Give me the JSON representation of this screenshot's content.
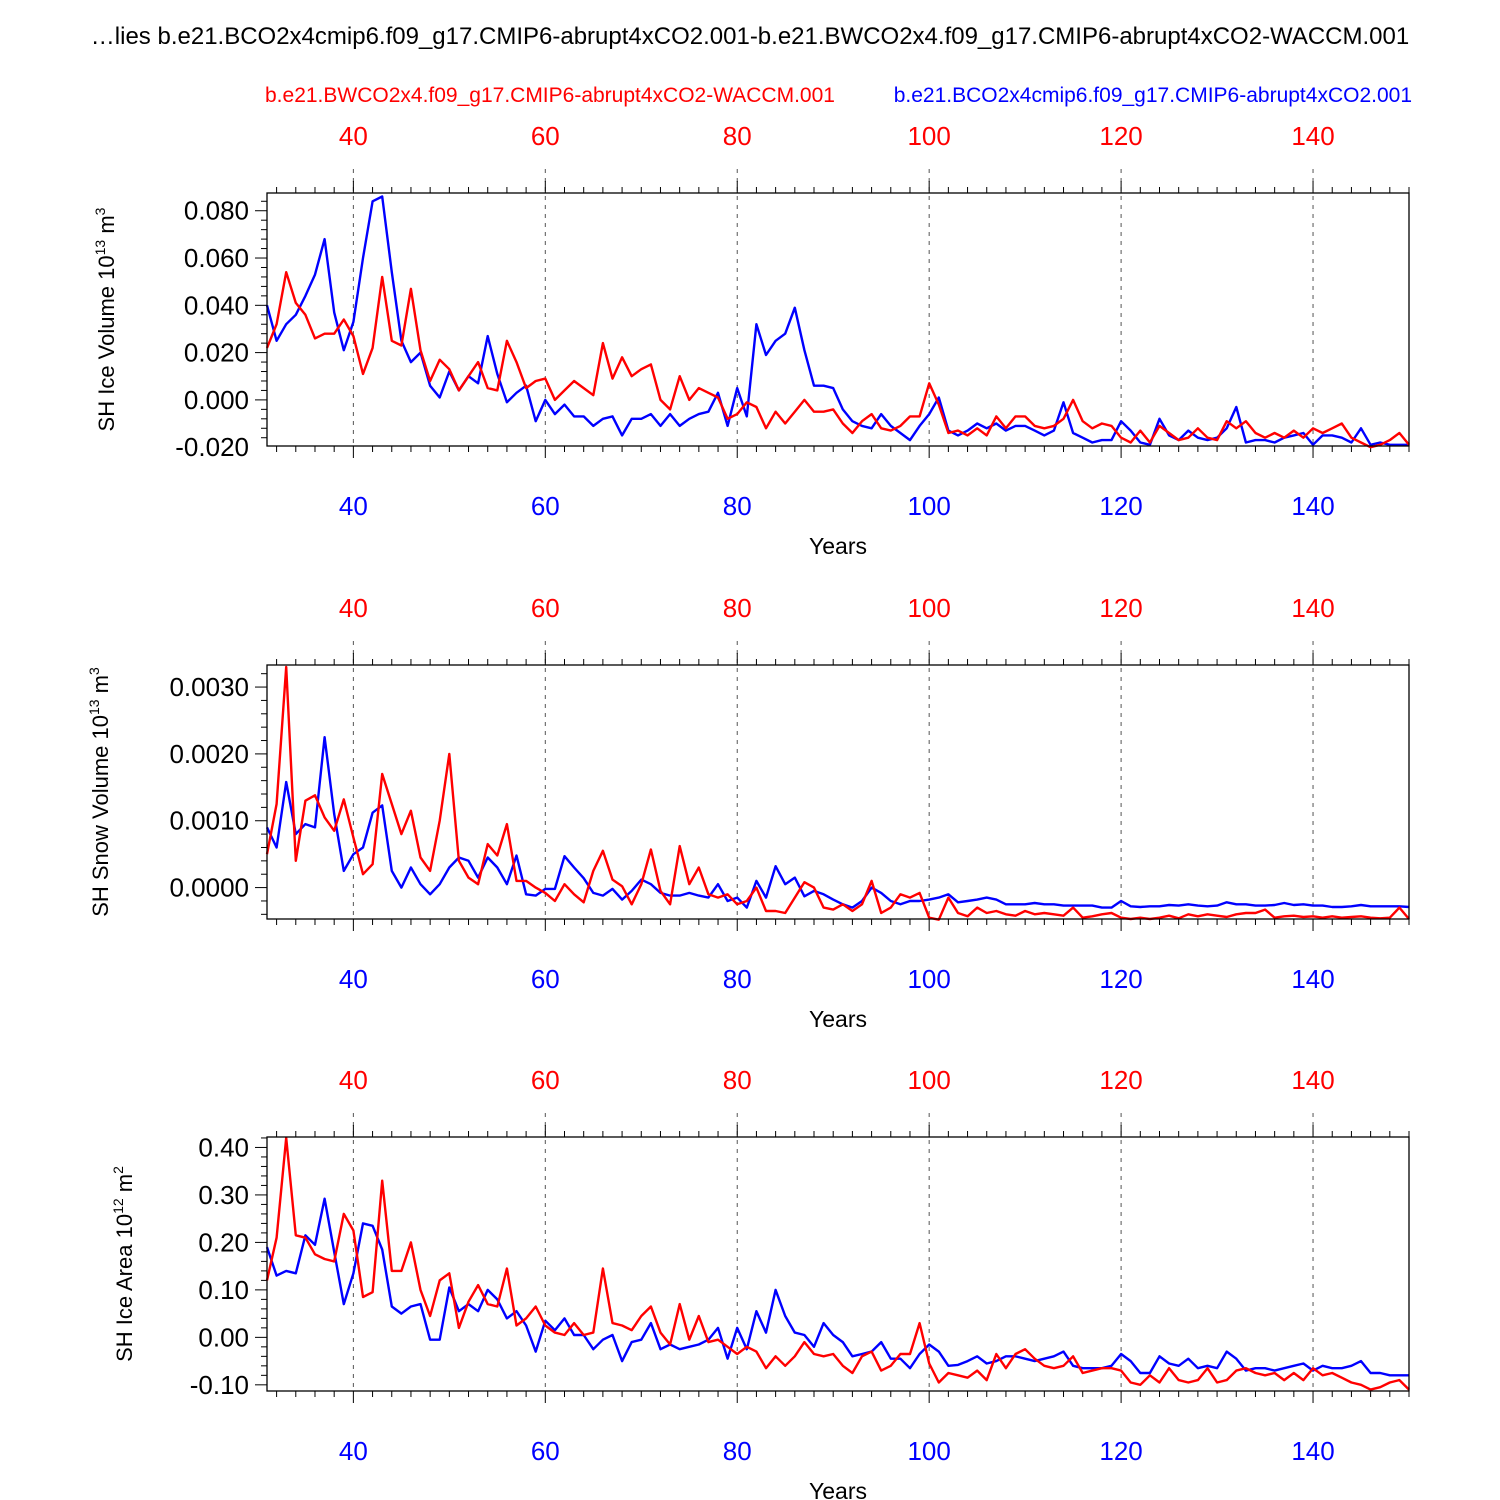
{
  "title": "…lies b.e21.BCO2x4cmip6.f09_g17.CMIP6-abrupt4xCO2.001-b.e21.BWCO2x4.f09_g17.CMIP6-abrupt4xCO2-WACCM.001",
  "legend": {
    "red_case": "b.e21.BWCO2x4.f09_g17.CMIP6-abrupt4xCO2-WACCM.001",
    "blue_case": "b.e21.BCO2x4cmip6.f09_g17.CMIP6-abrupt4xCO2.001"
  },
  "colors": {
    "red": "#ff0000",
    "blue": "#0000ff",
    "axis": "#000000",
    "grid": "#555555"
  },
  "chart_data": [
    {
      "type": "line",
      "ylabel_main": "SH Ice Volume 10",
      "ylabel_exp": "13",
      "ylabel_unit": " m",
      "ylabel_unit_exp": "3",
      "xlabel": "Years",
      "xlim": [
        31,
        150
      ],
      "ylim": [
        -0.0195,
        0.0875
      ],
      "yticks": [
        -0.02,
        0.0,
        0.02,
        0.04,
        0.06,
        0.08
      ],
      "ytick_labels": [
        "-0.020",
        "0.000",
        "0.020",
        "0.040",
        "0.060",
        "0.080"
      ],
      "xticks": [
        40,
        60,
        80,
        100,
        120,
        140
      ],
      "xtick_labels": [
        "40",
        "60",
        "80",
        "100",
        "120",
        "140"
      ],
      "x_start": 31,
      "series": [
        {
          "name": "blue",
          "color": "#0000ff",
          "values": [
            0.04,
            0.025,
            0.032,
            0.036,
            0.044,
            0.053,
            0.068,
            0.037,
            0.021,
            0.033,
            0.06,
            0.084,
            0.086,
            0.054,
            0.025,
            0.016,
            0.02,
            0.006,
            0.001,
            0.012,
            0.004,
            0.01,
            0.007,
            0.027,
            0.011,
            -0.001,
            0.003,
            0.006,
            -0.009,
            0.0,
            -0.006,
            -0.002,
            -0.007,
            -0.007,
            -0.011,
            -0.008,
            -0.007,
            -0.015,
            -0.008,
            -0.008,
            -0.006,
            -0.011,
            -0.006,
            -0.011,
            -0.008,
            -0.006,
            -0.005,
            0.003,
            -0.011,
            0.005,
            -0.007,
            0.032,
            0.019,
            0.025,
            0.028,
            0.039,
            0.021,
            0.006,
            0.006,
            0.005,
            -0.004,
            -0.009,
            -0.011,
            -0.012,
            -0.006,
            -0.011,
            -0.014,
            -0.017,
            -0.011,
            -0.006,
            0.001,
            -0.013,
            -0.015,
            -0.013,
            -0.01,
            -0.012,
            -0.01,
            -0.013,
            -0.011,
            -0.011,
            -0.013,
            -0.015,
            -0.013,
            -0.001,
            -0.014,
            -0.016,
            -0.018,
            -0.017,
            -0.017,
            -0.009,
            -0.013,
            -0.018,
            -0.019,
            -0.008,
            -0.015,
            -0.017,
            -0.013,
            -0.016,
            -0.017,
            -0.016,
            -0.012,
            -0.003,
            -0.018,
            -0.017,
            -0.017,
            -0.018,
            -0.016,
            -0.015,
            -0.014,
            -0.019,
            -0.015,
            -0.015,
            -0.016,
            -0.018,
            -0.012,
            -0.019,
            -0.018,
            -0.019,
            -0.019,
            -0.019
          ]
        },
        {
          "name": "red",
          "color": "#ff0000",
          "values": [
            0.022,
            0.032,
            0.054,
            0.041,
            0.036,
            0.026,
            0.028,
            0.028,
            0.034,
            0.027,
            0.011,
            0.022,
            0.052,
            0.025,
            0.023,
            0.047,
            0.021,
            0.008,
            0.017,
            0.013,
            0.004,
            0.01,
            0.016,
            0.005,
            0.004,
            0.025,
            0.016,
            0.005,
            0.008,
            0.009,
            0.0,
            0.004,
            0.008,
            0.005,
            0.002,
            0.024,
            0.009,
            0.018,
            0.01,
            0.013,
            0.015,
            0.0,
            -0.004,
            0.01,
            0.0,
            0.005,
            0.003,
            0.001,
            -0.008,
            -0.006,
            -0.001,
            -0.003,
            -0.012,
            -0.005,
            -0.01,
            -0.005,
            0.0,
            -0.005,
            -0.005,
            -0.004,
            -0.01,
            -0.014,
            -0.009,
            -0.006,
            -0.012,
            -0.013,
            -0.011,
            -0.007,
            -0.007,
            0.007,
            -0.002,
            -0.014,
            -0.013,
            -0.015,
            -0.012,
            -0.015,
            -0.007,
            -0.012,
            -0.007,
            -0.007,
            -0.011,
            -0.012,
            -0.011,
            -0.008,
            0.0,
            -0.009,
            -0.012,
            -0.01,
            -0.011,
            -0.016,
            -0.018,
            -0.013,
            -0.018,
            -0.011,
            -0.014,
            -0.017,
            -0.016,
            -0.012,
            -0.016,
            -0.017,
            -0.009,
            -0.012,
            -0.009,
            -0.014,
            -0.016,
            -0.014,
            -0.016,
            -0.013,
            -0.016,
            -0.012,
            -0.014,
            -0.012,
            -0.01,
            -0.016,
            -0.018,
            -0.02,
            -0.019,
            -0.017,
            -0.014,
            -0.019
          ]
        }
      ]
    },
    {
      "type": "line",
      "ylabel_main": "SH Snow Volume 10",
      "ylabel_exp": "13",
      "ylabel_unit": " m",
      "ylabel_unit_exp": "3",
      "xlabel": "Years",
      "xlim": [
        31,
        150
      ],
      "ylim": [
        -0.00047,
        0.00333
      ],
      "yticks": [
        0.0,
        0.001,
        0.002,
        0.003
      ],
      "ytick_labels": [
        "0.0000",
        "0.0010",
        "0.0020",
        "0.0030"
      ],
      "xticks": [
        40,
        60,
        80,
        100,
        120,
        140
      ],
      "xtick_labels": [
        "40",
        "60",
        "80",
        "100",
        "120",
        "140"
      ],
      "x_start": 31,
      "series": [
        {
          "name": "blue",
          "color": "#0000ff",
          "values": [
            0.0009,
            0.0006,
            0.00158,
            0.0008,
            0.00095,
            0.0009,
            0.00225,
            0.0011,
            0.00025,
            0.0005,
            0.0006,
            0.00112,
            0.00123,
            0.00025,
            0.0,
            0.0003,
            5e-05,
            -0.0001,
            5e-05,
            0.0003,
            0.00045,
            0.0004,
            0.00015,
            0.00045,
            0.0003,
            5e-05,
            0.00048,
            -0.0001,
            -0.00012,
            -2e-05,
            -2e-05,
            0.00047,
            0.0003,
            0.00014,
            -8e-05,
            -0.00012,
            -2e-05,
            -0.00018,
            -5e-05,
            0.00012,
            5e-05,
            -8e-05,
            -0.00012,
            -0.00012,
            -8e-05,
            -0.00012,
            -0.00015,
            5e-05,
            -0.0002,
            -0.00015,
            -0.0003,
            0.0001,
            -0.00015,
            0.00032,
            5e-05,
            0.00015,
            -0.00013,
            -5e-05,
            -0.0001,
            -0.00018,
            -0.00025,
            -0.0003,
            -0.0002,
            0.0,
            -8e-05,
            -0.0002,
            -0.00025,
            -0.0002,
            -0.0002,
            -0.00018,
            -0.00015,
            -0.0001,
            -0.00022,
            -0.0002,
            -0.00018,
            -0.00015,
            -0.00018,
            -0.00025,
            -0.00025,
            -0.00025,
            -0.00023,
            -0.00025,
            -0.00025,
            -0.00027,
            -0.00027,
            -0.00027,
            -0.00027,
            -0.0003,
            -0.0003,
            -0.0002,
            -0.00028,
            -0.00029,
            -0.00028,
            -0.00028,
            -0.00026,
            -0.00027,
            -0.00025,
            -0.00027,
            -0.00028,
            -0.00027,
            -0.00022,
            -0.00025,
            -0.00025,
            -0.00027,
            -0.00027,
            -0.00026,
            -0.00023,
            -0.00026,
            -0.00025,
            -0.00027,
            -0.00027,
            -0.00029,
            -0.00029,
            -0.00028,
            -0.00026,
            -0.00028,
            -0.00028,
            -0.00028,
            -0.00028,
            -0.00029
          ]
        },
        {
          "name": "red",
          "color": "#ff0000",
          "values": [
            0.0005,
            0.00125,
            0.0033,
            0.0004,
            0.0013,
            0.00138,
            0.00105,
            0.00085,
            0.00132,
            0.00075,
            0.0002,
            0.00035,
            0.0017,
            0.00125,
            0.0008,
            0.00115,
            0.00045,
            0.00025,
            0.001,
            0.002,
            0.0004,
            0.00015,
            5e-05,
            0.00065,
            0.00048,
            0.00095,
            0.0001,
            0.0001,
            0.0,
            -8e-05,
            -0.0002,
            5e-05,
            -0.0001,
            -0.00022,
            0.00025,
            0.00055,
            0.00012,
            2e-05,
            -0.00025,
            5e-05,
            0.00057,
            -5e-05,
            -0.00025,
            0.00062,
            5e-05,
            0.0003,
            -0.0001,
            -0.00015,
            -0.0001,
            -0.00025,
            -0.0002,
            0.0,
            -0.00035,
            -0.00035,
            -0.00038,
            -0.00015,
            8e-05,
            0.0,
            -0.0003,
            -0.00033,
            -0.00025,
            -0.00035,
            -0.00025,
            0.0001,
            -0.00038,
            -0.0003,
            -0.0001,
            -0.00015,
            -8e-05,
            -0.00045,
            -0.00048,
            -0.00015,
            -0.00038,
            -0.00043,
            -0.0003,
            -0.00038,
            -0.00035,
            -0.0004,
            -0.00042,
            -0.00035,
            -0.0004,
            -0.00038,
            -0.0004,
            -0.00042,
            -0.0003,
            -0.00045,
            -0.00043,
            -0.0004,
            -0.00038,
            -0.00045,
            -0.00047,
            -0.00045,
            -0.00047,
            -0.00045,
            -0.00042,
            -0.00046,
            -0.0004,
            -0.00043,
            -0.0004,
            -0.00042,
            -0.00044,
            -0.0004,
            -0.00038,
            -0.00038,
            -0.00033,
            -0.00045,
            -0.00043,
            -0.00042,
            -0.00044,
            -0.00043,
            -0.00045,
            -0.00043,
            -0.00045,
            -0.00044,
            -0.00043,
            -0.00045,
            -0.00046,
            -0.00045,
            -0.0003,
            -0.00047
          ]
        }
      ]
    },
    {
      "type": "line",
      "ylabel_main": "SH Ice Area 10",
      "ylabel_exp": "12",
      "ylabel_unit": " m",
      "ylabel_unit_exp": "2",
      "xlabel": "Years",
      "xlim": [
        31,
        150
      ],
      "ylim": [
        -0.113,
        0.422
      ],
      "yticks": [
        -0.1,
        0.0,
        0.1,
        0.2,
        0.3,
        0.4
      ],
      "ytick_labels": [
        "-0.10",
        "0.00",
        "0.10",
        "0.20",
        "0.30",
        "0.40"
      ],
      "xticks": [
        40,
        60,
        80,
        100,
        120,
        140
      ],
      "xtick_labels": [
        "40",
        "60",
        "80",
        "100",
        "120",
        "140"
      ],
      "x_start": 31,
      "series": [
        {
          "name": "blue",
          "color": "#0000ff",
          "values": [
            0.19,
            0.13,
            0.14,
            0.135,
            0.215,
            0.195,
            0.292,
            0.18,
            0.07,
            0.135,
            0.24,
            0.235,
            0.185,
            0.065,
            0.05,
            0.065,
            0.07,
            -0.005,
            -0.005,
            0.105,
            0.055,
            0.07,
            0.055,
            0.1,
            0.08,
            0.04,
            0.055,
            0.025,
            -0.03,
            0.035,
            0.015,
            0.04,
            0.005,
            0.005,
            -0.025,
            -0.005,
            0.005,
            -0.05,
            -0.01,
            -0.005,
            0.03,
            -0.025,
            -0.015,
            -0.025,
            -0.02,
            -0.015,
            -0.005,
            0.02,
            -0.045,
            0.02,
            -0.025,
            0.055,
            0.01,
            0.1,
            0.045,
            0.01,
            0.005,
            -0.02,
            0.03,
            0.005,
            -0.01,
            -0.04,
            -0.035,
            -0.03,
            -0.01,
            -0.045,
            -0.045,
            -0.065,
            -0.035,
            -0.015,
            -0.03,
            -0.06,
            -0.058,
            -0.05,
            -0.04,
            -0.055,
            -0.05,
            -0.04,
            -0.04,
            -0.045,
            -0.05,
            -0.045,
            -0.04,
            -0.03,
            -0.06,
            -0.065,
            -0.065,
            -0.065,
            -0.06,
            -0.035,
            -0.05,
            -0.075,
            -0.075,
            -0.04,
            -0.055,
            -0.06,
            -0.045,
            -0.065,
            -0.06,
            -0.065,
            -0.03,
            -0.045,
            -0.07,
            -0.065,
            -0.065,
            -0.07,
            -0.065,
            -0.06,
            -0.055,
            -0.07,
            -0.06,
            -0.065,
            -0.065,
            -0.06,
            -0.05,
            -0.075,
            -0.075,
            -0.08,
            -0.08,
            -0.08
          ]
        },
        {
          "name": "red",
          "color": "#ff0000",
          "values": [
            0.12,
            0.21,
            0.42,
            0.215,
            0.21,
            0.175,
            0.165,
            0.16,
            0.26,
            0.225,
            0.085,
            0.095,
            0.33,
            0.14,
            0.14,
            0.2,
            0.1,
            0.045,
            0.12,
            0.135,
            0.02,
            0.075,
            0.11,
            0.07,
            0.065,
            0.145,
            0.025,
            0.04,
            0.065,
            0.025,
            0.01,
            0.005,
            0.03,
            0.005,
            0.01,
            0.145,
            0.03,
            0.025,
            0.015,
            0.045,
            0.065,
            0.01,
            -0.015,
            0.07,
            -0.005,
            0.045,
            -0.01,
            -0.005,
            -0.02,
            -0.035,
            -0.02,
            -0.03,
            -0.065,
            -0.04,
            -0.06,
            -0.04,
            -0.01,
            -0.035,
            -0.04,
            -0.035,
            -0.06,
            -0.075,
            -0.04,
            -0.03,
            -0.07,
            -0.06,
            -0.035,
            -0.035,
            0.03,
            -0.055,
            -0.095,
            -0.075,
            -0.08,
            -0.085,
            -0.07,
            -0.09,
            -0.035,
            -0.065,
            -0.035,
            -0.025,
            -0.045,
            -0.06,
            -0.065,
            -0.06,
            -0.04,
            -0.075,
            -0.07,
            -0.065,
            -0.065,
            -0.07,
            -0.095,
            -0.1,
            -0.08,
            -0.095,
            -0.065,
            -0.09,
            -0.095,
            -0.09,
            -0.065,
            -0.095,
            -0.09,
            -0.07,
            -0.065,
            -0.075,
            -0.08,
            -0.075,
            -0.09,
            -0.075,
            -0.09,
            -0.065,
            -0.08,
            -0.075,
            -0.085,
            -0.095,
            -0.1,
            -0.11,
            -0.105,
            -0.095,
            -0.09,
            -0.11
          ]
        }
      ]
    }
  ]
}
